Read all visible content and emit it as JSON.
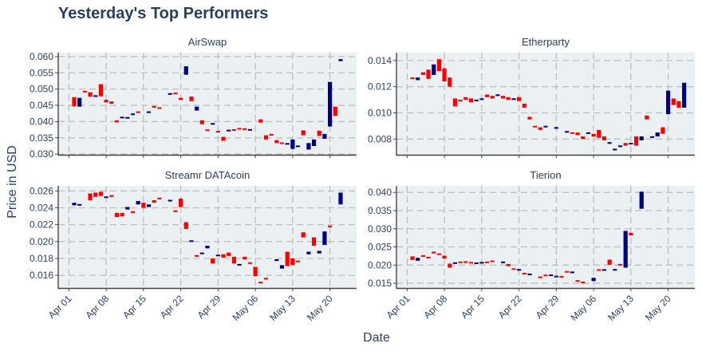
{
  "page_title": "Yesterday's Top Performers",
  "colors": {
    "up": "#000080",
    "down": "#ff0000",
    "panel_bg": "#ebf0f2",
    "grid": "#bfbfbf",
    "text": "#2a3f5f",
    "axis": "#444444"
  },
  "chart_data": [
    {
      "type": "candlestick",
      "title": "AirSwap",
      "xlabel": "Date",
      "ylabel": "Price in USD",
      "x_range": [
        "2018-03-30",
        "2018-05-25"
      ],
      "ylim": [
        0.0298,
        0.0612
      ],
      "yticks": [
        0.03,
        0.035,
        0.04,
        0.045,
        0.05,
        0.055,
        0.06
      ],
      "ytick_labels": [
        "0.030",
        "0.035",
        "0.040",
        "0.045",
        "0.050",
        "0.055",
        "0.060"
      ],
      "xticks": [
        "2018-04-01",
        "2018-04-08",
        "2018-04-15",
        "2018-04-22",
        "2018-04-29",
        "2018-05-06",
        "2018-05-13",
        "2018-05-20"
      ],
      "xtick_labels": [
        "Apr 01",
        "Apr 08",
        "Apr 15",
        "Apr 22",
        "Apr 29",
        "May 06",
        "May 13",
        "May 20"
      ],
      "ohlc": [
        [
          "2018-04-02",
          0.0475,
          0.0447
        ],
        [
          "2018-04-03",
          0.0446,
          0.0473
        ],
        [
          "2018-04-04",
          0.0494,
          0.049
        ],
        [
          "2018-04-05",
          0.049,
          0.0477
        ],
        [
          "2018-04-06",
          0.0477,
          0.048
        ],
        [
          "2018-04-07",
          0.0515,
          0.0478
        ],
        [
          "2018-04-08",
          0.0467,
          0.0459
        ],
        [
          "2018-04-09",
          0.0462,
          0.0455
        ],
        [
          "2018-04-10",
          0.0404,
          0.0398
        ],
        [
          "2018-04-11",
          0.0412,
          0.0413
        ],
        [
          "2018-04-12",
          0.0411,
          0.0412
        ],
        [
          "2018-04-13",
          0.0421,
          0.0424
        ],
        [
          "2018-04-14",
          0.043,
          0.0428
        ],
        [
          "2018-04-16",
          0.0428,
          0.043
        ],
        [
          "2018-04-17",
          0.0448,
          0.0443
        ],
        [
          "2018-04-18",
          0.0443,
          0.044
        ],
        [
          "2018-04-20",
          0.0484,
          0.0486
        ],
        [
          "2018-04-21",
          0.0489,
          0.0484
        ],
        [
          "2018-04-22",
          0.0473,
          0.0467
        ],
        [
          "2018-04-23",
          0.0544,
          0.057
        ],
        [
          "2018-04-24",
          0.0477,
          0.0463
        ],
        [
          "2018-04-25",
          0.0434,
          0.0446
        ],
        [
          "2018-04-26",
          0.0404,
          0.0392
        ],
        [
          "2018-04-27",
          0.0375,
          0.0372
        ],
        [
          "2018-04-28",
          0.0392,
          0.0394
        ],
        [
          "2018-04-29",
          0.037,
          0.0368
        ],
        [
          "2018-04-30",
          0.0353,
          0.0341
        ],
        [
          "2018-05-01",
          0.0372,
          0.0373
        ],
        [
          "2018-05-02",
          0.0375,
          0.0373
        ],
        [
          "2018-05-03",
          0.0379,
          0.0377
        ],
        [
          "2018-05-04",
          0.0378,
          0.0376
        ],
        [
          "2018-05-05",
          0.0373,
          0.0376
        ],
        [
          "2018-05-07",
          0.0407,
          0.0397
        ],
        [
          "2018-05-08",
          0.0358,
          0.0345
        ],
        [
          "2018-05-09",
          0.0362,
          0.0357
        ],
        [
          "2018-05-10",
          0.0343,
          0.0334
        ],
        [
          "2018-05-11",
          0.0335,
          0.0332
        ],
        [
          "2018-05-12",
          0.033,
          0.0333
        ],
        [
          "2018-05-13",
          0.0316,
          0.0345
        ],
        [
          "2018-05-14",
          0.0322,
          0.0326
        ],
        [
          "2018-05-15",
          0.0373,
          0.0358
        ],
        [
          "2018-05-16",
          0.0314,
          0.0334
        ],
        [
          "2018-05-17",
          0.0325,
          0.0345
        ],
        [
          "2018-05-18",
          0.0372,
          0.0356
        ],
        [
          "2018-05-19",
          0.0347,
          0.0362
        ],
        [
          "2018-05-20",
          0.0385,
          0.0522
        ],
        [
          "2018-05-21",
          0.0446,
          0.0418
        ],
        [
          "2018-05-22",
          0.0586,
          0.0592
        ]
      ]
    },
    {
      "type": "candlestick",
      "title": "Etherparty",
      "xlabel": "Date",
      "ylabel": "Price in USD",
      "x_range": [
        "2018-03-30",
        "2018-05-25"
      ],
      "ylim": [
        0.0068,
        0.0146
      ],
      "yticks": [
        0.008,
        0.01,
        0.012,
        0.014
      ],
      "ytick_labels": [
        "0.008",
        "0.010",
        "0.012",
        "0.014"
      ],
      "xticks": [
        "2018-04-01",
        "2018-04-08",
        "2018-04-15",
        "2018-04-22",
        "2018-04-29",
        "2018-05-06",
        "2018-05-13",
        "2018-05-20"
      ],
      "xtick_labels": [
        "Apr 01",
        "Apr 08",
        "Apr 15",
        "Apr 22",
        "Apr 29",
        "May 06",
        "May 13",
        "May 20"
      ],
      "ohlc": [
        [
          "2018-04-02",
          0.0127,
          0.0126
        ],
        [
          "2018-04-03",
          0.0125,
          0.0127
        ],
        [
          "2018-04-04",
          0.0131,
          0.0129
        ],
        [
          "2018-04-05",
          0.0133,
          0.0126
        ],
        [
          "2018-04-06",
          0.0129,
          0.0137
        ],
        [
          "2018-04-07",
          0.0141,
          0.0132
        ],
        [
          "2018-04-08",
          0.0134,
          0.0124
        ],
        [
          "2018-04-09",
          0.0127,
          0.012
        ],
        [
          "2018-04-10",
          0.0111,
          0.0105
        ],
        [
          "2018-04-11",
          0.011,
          0.0109
        ],
        [
          "2018-04-12",
          0.0112,
          0.011
        ],
        [
          "2018-04-13",
          0.0111,
          0.0108
        ],
        [
          "2018-04-14",
          0.0109,
          0.011
        ],
        [
          "2018-04-15",
          0.011,
          0.0111
        ],
        [
          "2018-04-16",
          0.0114,
          0.0112
        ],
        [
          "2018-04-17",
          0.0113,
          0.0111
        ],
        [
          "2018-04-18",
          0.0113,
          0.0114
        ],
        [
          "2018-04-19",
          0.0113,
          0.0111
        ],
        [
          "2018-04-20",
          0.0112,
          0.011
        ],
        [
          "2018-04-21",
          0.011,
          0.0111
        ],
        [
          "2018-04-22",
          0.0112,
          0.0109
        ],
        [
          "2018-04-23",
          0.0107,
          0.0104
        ],
        [
          "2018-04-24",
          0.0097,
          0.0095
        ],
        [
          "2018-04-25",
          0.009,
          0.0089
        ],
        [
          "2018-04-26",
          0.0089,
          0.0087
        ],
        [
          "2018-04-27",
          0.0089,
          0.009
        ],
        [
          "2018-04-29",
          0.0088,
          0.0089
        ],
        [
          "2018-05-01",
          0.0085,
          0.0086
        ],
        [
          "2018-05-02",
          0.0085,
          0.0084
        ],
        [
          "2018-05-03",
          0.0085,
          0.0083
        ],
        [
          "2018-05-04",
          0.0082,
          0.008
        ],
        [
          "2018-05-05",
          0.0084,
          0.0085
        ],
        [
          "2018-05-06",
          0.0084,
          0.0082
        ],
        [
          "2018-05-07",
          0.0087,
          0.0081
        ],
        [
          "2018-05-08",
          0.0082,
          0.0079
        ],
        [
          "2018-05-09",
          0.0077,
          0.0077
        ],
        [
          "2018-05-10",
          0.0072,
          0.0072
        ],
        [
          "2018-05-11",
          0.0074,
          0.0075
        ],
        [
          "2018-05-12",
          0.0077,
          0.0075
        ],
        [
          "2018-05-13",
          0.0076,
          0.0077
        ],
        [
          "2018-05-14",
          0.0082,
          0.0075
        ],
        [
          "2018-05-15",
          0.0079,
          0.0082
        ],
        [
          "2018-05-16",
          0.0098,
          0.0095
        ],
        [
          "2018-05-17",
          0.0081,
          0.0082
        ],
        [
          "2018-05-18",
          0.0082,
          0.0085
        ],
        [
          "2018-05-19",
          0.0089,
          0.0084
        ],
        [
          "2018-05-20",
          0.0099,
          0.0117
        ],
        [
          "2018-05-21",
          0.0111,
          0.0106
        ],
        [
          "2018-05-22",
          0.0109,
          0.0104
        ],
        [
          "2018-05-23",
          0.0104,
          0.0123
        ]
      ]
    },
    {
      "type": "candlestick",
      "title": "Streamr DATAcoin",
      "xlabel": "Date",
      "ylabel": "Price in USD",
      "x_range": [
        "2018-03-30",
        "2018-05-25"
      ],
      "ylim": [
        0.0145,
        0.0266
      ],
      "yticks": [
        0.016,
        0.018,
        0.02,
        0.022,
        0.024,
        0.026
      ],
      "ytick_labels": [
        "0.016",
        "0.018",
        "0.020",
        "0.022",
        "0.024",
        "0.026"
      ],
      "xticks": [
        "2018-04-01",
        "2018-04-08",
        "2018-04-15",
        "2018-04-22",
        "2018-04-29",
        "2018-05-06",
        "2018-05-13",
        "2018-05-20"
      ],
      "xtick_labels": [
        "Apr 01",
        "Apr 08",
        "Apr 15",
        "Apr 22",
        "Apr 29",
        "May 06",
        "May 13",
        "May 20"
      ],
      "ohlc": [
        [
          "2018-04-02",
          0.0243,
          0.0246
        ],
        [
          "2018-04-03",
          0.0243,
          0.0244
        ],
        [
          "2018-04-05",
          0.0257,
          0.0249
        ],
        [
          "2018-04-06",
          0.0258,
          0.0253
        ],
        [
          "2018-04-07",
          0.0259,
          0.0254
        ],
        [
          "2018-04-08",
          0.0252,
          0.0253
        ],
        [
          "2018-04-09",
          0.0255,
          0.0253
        ],
        [
          "2018-04-10",
          0.0234,
          0.0229
        ],
        [
          "2018-04-11",
          0.0234,
          0.023
        ],
        [
          "2018-04-12",
          0.0238,
          0.0241
        ],
        [
          "2018-04-13",
          0.0236,
          0.0234
        ],
        [
          "2018-04-14",
          0.0244,
          0.0248
        ],
        [
          "2018-04-15",
          0.0246,
          0.024
        ],
        [
          "2018-04-16",
          0.0241,
          0.0244
        ],
        [
          "2018-04-17",
          0.0249,
          0.0246
        ],
        [
          "2018-04-18",
          0.0252,
          0.025
        ],
        [
          "2018-04-20",
          0.0248,
          0.0249
        ],
        [
          "2018-04-21",
          0.0237,
          0.0235
        ],
        [
          "2018-04-22",
          0.0251,
          0.0241
        ],
        [
          "2018-04-23",
          0.0223,
          0.0215
        ],
        [
          "2018-04-24",
          0.02,
          0.0201
        ],
        [
          "2018-04-25",
          0.0184,
          0.0182
        ],
        [
          "2018-04-26",
          0.0186,
          0.0186
        ],
        [
          "2018-04-27",
          0.0192,
          0.0195
        ],
        [
          "2018-04-28",
          0.018,
          0.0174
        ],
        [
          "2018-04-29",
          0.0183,
          0.0184
        ],
        [
          "2018-04-30",
          0.0185,
          0.0181
        ],
        [
          "2018-05-01",
          0.0187,
          0.0183
        ],
        [
          "2018-05-02",
          0.0182,
          0.0174
        ],
        [
          "2018-05-03",
          0.0172,
          0.0173
        ],
        [
          "2018-05-04",
          0.0182,
          0.0179
        ],
        [
          "2018-05-05",
          0.0175,
          0.0174
        ],
        [
          "2018-05-06",
          0.017,
          0.0159
        ],
        [
          "2018-05-07",
          0.0152,
          0.0151
        ],
        [
          "2018-05-08",
          0.0157,
          0.0155
        ],
        [
          "2018-05-10",
          0.0177,
          0.0179
        ],
        [
          "2018-05-11",
          0.0168,
          0.0172
        ],
        [
          "2018-05-12",
          0.0188,
          0.0171
        ],
        [
          "2018-05-13",
          0.018,
          0.0172
        ],
        [
          "2018-05-14",
          0.0177,
          0.0176
        ],
        [
          "2018-05-15",
          0.0211,
          0.0205
        ],
        [
          "2018-05-16",
          0.0185,
          0.0188
        ],
        [
          "2018-05-17",
          0.0205,
          0.0195
        ],
        [
          "2018-05-18",
          0.0186,
          0.0189
        ],
        [
          "2018-05-19",
          0.0196,
          0.0212
        ],
        [
          "2018-05-20",
          0.0219,
          0.0217
        ],
        [
          "2018-05-22",
          0.0244,
          0.0258
        ]
      ]
    },
    {
      "type": "candlestick",
      "title": "Tierion",
      "xlabel": "Date",
      "ylabel": "Price in USD",
      "x_range": [
        "2018-03-30",
        "2018-05-25"
      ],
      "ylim": [
        0.0137,
        0.0418
      ],
      "yticks": [
        0.015,
        0.02,
        0.025,
        0.03,
        0.035,
        0.04
      ],
      "ytick_labels": [
        "0.015",
        "0.020",
        "0.025",
        "0.030",
        "0.035",
        "0.040"
      ],
      "xticks": [
        "2018-04-01",
        "2018-04-08",
        "2018-04-15",
        "2018-04-22",
        "2018-04-29",
        "2018-05-06",
        "2018-05-13",
        "2018-05-20"
      ],
      "xtick_labels": [
        "Apr 01",
        "Apr 08",
        "Apr 15",
        "Apr 22",
        "Apr 29",
        "May 06",
        "May 13",
        "May 20"
      ],
      "ohlc": [
        [
          "2018-04-02",
          0.0224,
          0.0214
        ],
        [
          "2018-04-03",
          0.0212,
          0.022
        ],
        [
          "2018-04-04",
          0.0227,
          0.0223
        ],
        [
          "2018-04-05",
          0.0221,
          0.022
        ],
        [
          "2018-04-06",
          0.0237,
          0.0232
        ],
        [
          "2018-04-07",
          0.0232,
          0.0228
        ],
        [
          "2018-04-08",
          0.0226,
          0.0218
        ],
        [
          "2018-04-09",
          0.0204,
          0.0193
        ],
        [
          "2018-04-10",
          0.0205,
          0.0206
        ],
        [
          "2018-04-11",
          0.0208,
          0.0207
        ],
        [
          "2018-04-12",
          0.021,
          0.0207
        ],
        [
          "2018-04-13",
          0.0207,
          0.0206
        ],
        [
          "2018-04-14",
          0.0204,
          0.0206
        ],
        [
          "2018-04-15",
          0.0206,
          0.0207
        ],
        [
          "2018-04-16",
          0.0208,
          0.0207
        ],
        [
          "2018-04-17",
          0.0212,
          0.0209
        ],
        [
          "2018-04-19",
          0.0207,
          0.0208
        ],
        [
          "2018-04-20",
          0.0203,
          0.0197
        ],
        [
          "2018-04-21",
          0.0191,
          0.0187
        ],
        [
          "2018-04-22",
          0.0186,
          0.0188
        ],
        [
          "2018-04-23",
          0.0177,
          0.0176
        ],
        [
          "2018-04-24",
          0.0174,
          0.0175
        ],
        [
          "2018-04-26",
          0.0167,
          0.0166
        ],
        [
          "2018-04-27",
          0.0172,
          0.0171
        ],
        [
          "2018-04-28",
          0.0171,
          0.0173
        ],
        [
          "2018-04-29",
          0.0168,
          0.0169
        ],
        [
          "2018-04-30",
          0.0168,
          0.0167
        ],
        [
          "2018-05-01",
          0.0182,
          0.0181
        ],
        [
          "2018-05-02",
          0.0179,
          0.0181
        ],
        [
          "2018-05-03",
          0.0158,
          0.0155
        ],
        [
          "2018-05-04",
          0.0153,
          0.0152
        ],
        [
          "2018-05-06",
          0.0156,
          0.0165
        ],
        [
          "2018-05-07",
          0.0187,
          0.0186
        ],
        [
          "2018-05-08",
          0.0186,
          0.0187
        ],
        [
          "2018-05-09",
          0.0215,
          0.0201
        ],
        [
          "2018-05-10",
          0.0185,
          0.0189
        ],
        [
          "2018-05-11",
          0.0203,
          0.0199
        ],
        [
          "2018-05-12",
          0.0193,
          0.0294
        ],
        [
          "2018-05-13",
          0.0289,
          0.0282
        ],
        [
          "2018-05-15",
          0.0355,
          0.0402
        ]
      ]
    }
  ]
}
